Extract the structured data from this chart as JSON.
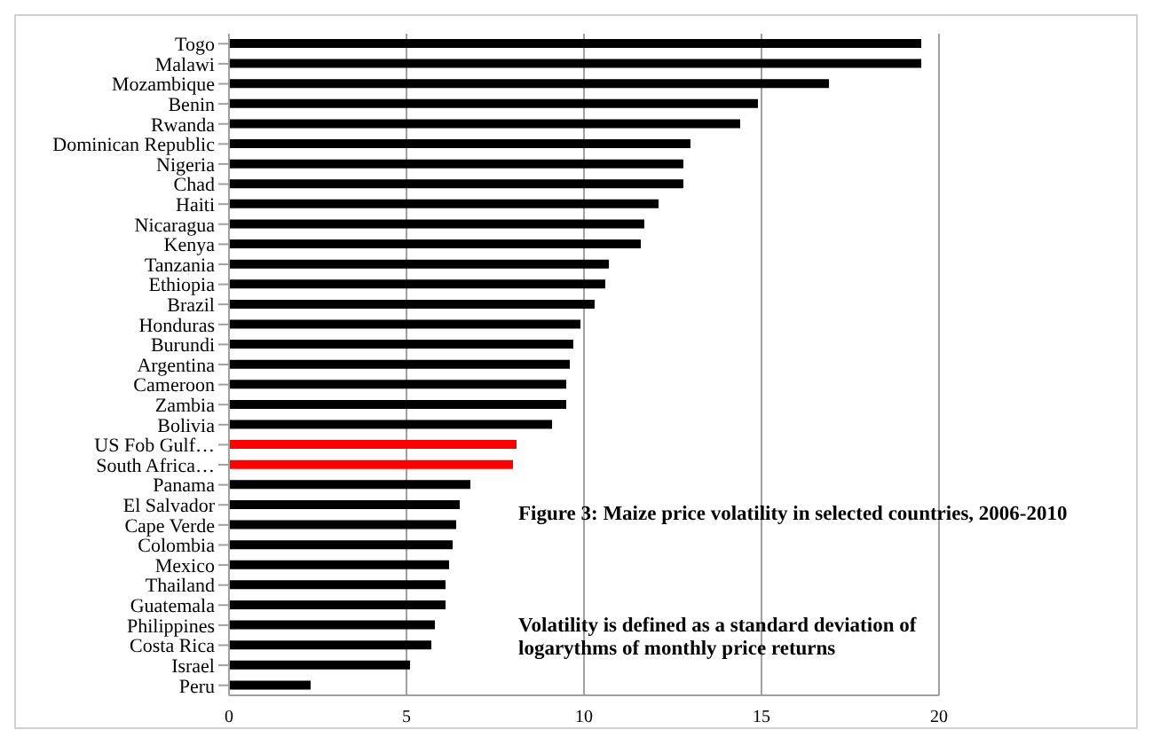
{
  "chart_data": {
    "type": "bar",
    "orientation": "horizontal",
    "categories": [
      "Togo",
      "Malawi",
      "Mozambique",
      "Benin",
      "Rwanda",
      "Dominican Republic",
      "Nigeria",
      "Chad",
      "Haiti",
      "Nicaragua",
      "Kenya",
      "Tanzania",
      "Ethiopia",
      "Brazil",
      "Honduras",
      "Burundi",
      "Argentina",
      "Cameroon",
      "Zambia",
      "Bolivia",
      "US Fob Gulf…",
      "South Africa…",
      "Panama",
      "El Salvador",
      "Cape Verde",
      "Colombia",
      "Mexico",
      "Thailand",
      "Guatemala",
      "Philippines",
      "Costa Rica",
      "Israel",
      "Peru"
    ],
    "values": [
      19.5,
      19.5,
      16.9,
      14.9,
      14.4,
      13.0,
      12.8,
      12.8,
      12.1,
      11.7,
      11.6,
      10.7,
      10.6,
      10.3,
      9.9,
      9.7,
      9.6,
      9.5,
      9.5,
      9.1,
      8.1,
      8.0,
      6.8,
      6.5,
      6.4,
      6.3,
      6.2,
      6.1,
      6.1,
      5.8,
      5.7,
      5.1,
      2.3
    ],
    "colors": [
      "#000000",
      "#000000",
      "#000000",
      "#000000",
      "#000000",
      "#000000",
      "#000000",
      "#000000",
      "#000000",
      "#000000",
      "#000000",
      "#000000",
      "#000000",
      "#000000",
      "#000000",
      "#000000",
      "#000000",
      "#000000",
      "#000000",
      "#000000",
      "#ff0000",
      "#ff0000",
      "#000000",
      "#000000",
      "#000000",
      "#000000",
      "#000000",
      "#000000",
      "#000000",
      "#000000",
      "#000000",
      "#000000",
      "#000000"
    ],
    "xlim": [
      0,
      20
    ],
    "xticks": [
      0,
      5,
      10,
      15,
      20
    ],
    "grid": "x",
    "annotations": [
      "Figure 3: Maize price volatility in selected  countries, 2006-2010",
      "Volatility is defined as a standard deviation of logarythms of monthly price returns"
    ]
  }
}
